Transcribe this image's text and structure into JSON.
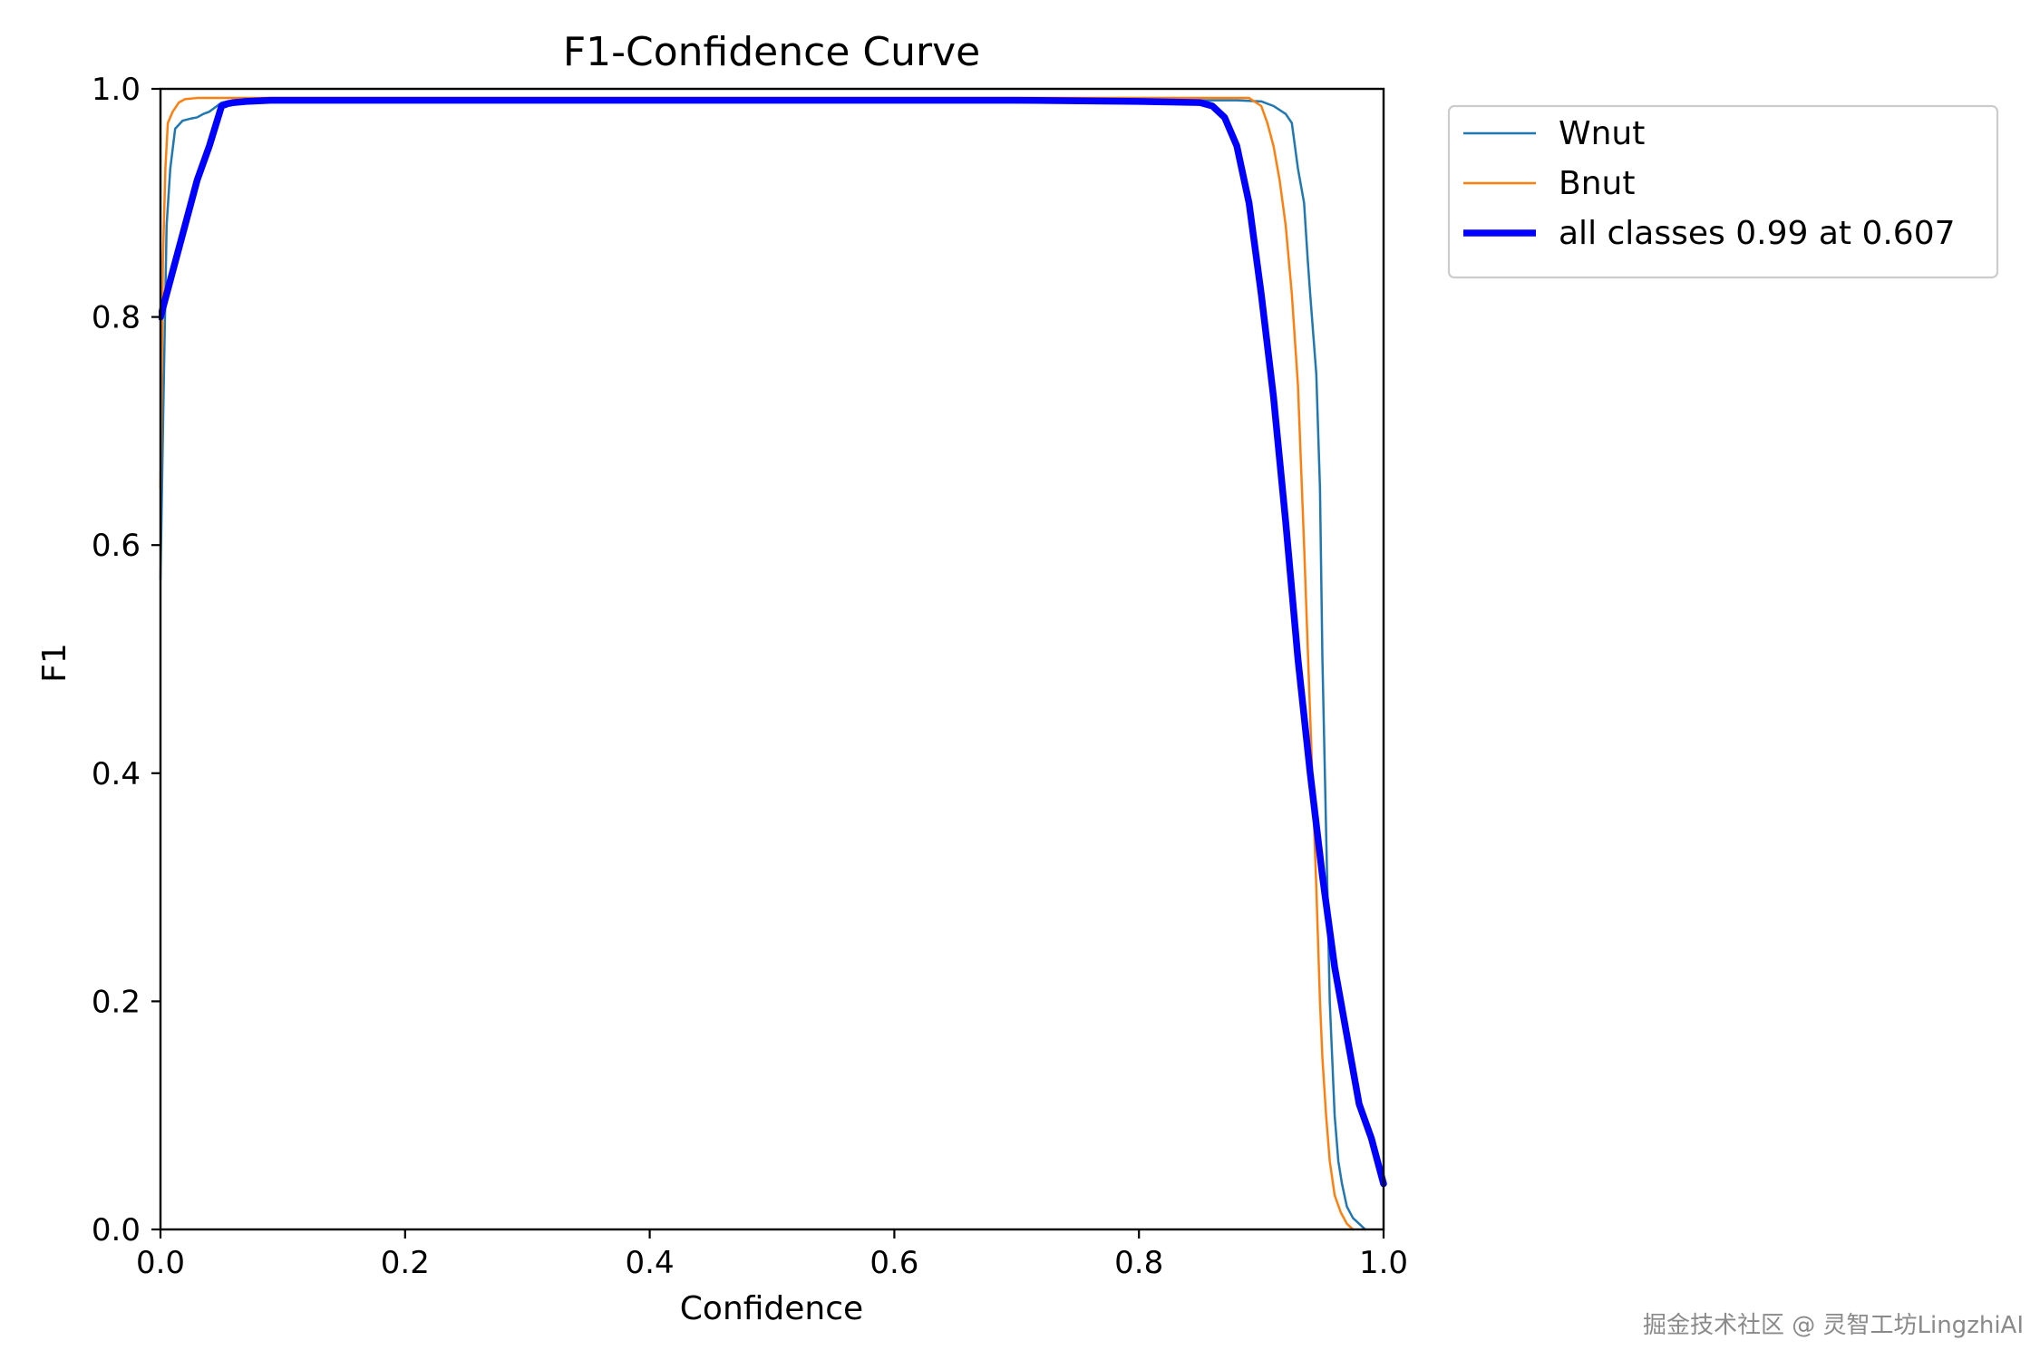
{
  "chart_data": {
    "type": "line",
    "title": "F1-Confidence Curve",
    "xlabel": "Confidence",
    "ylabel": "F1",
    "xlim": [
      0.0,
      1.0
    ],
    "ylim": [
      0.0,
      1.0
    ],
    "xticks": [
      "0.0",
      "0.2",
      "0.4",
      "0.6",
      "0.8",
      "1.0"
    ],
    "yticks": [
      "0.0",
      "0.2",
      "0.4",
      "0.6",
      "0.8",
      "1.0"
    ],
    "grid": false,
    "legend_position": "outside-top-right",
    "series": [
      {
        "name": "Wnut",
        "color": "#1f77b4",
        "x": [
          0.0,
          0.002,
          0.005,
          0.008,
          0.012,
          0.018,
          0.025,
          0.03,
          0.035,
          0.04,
          0.045,
          0.05,
          0.06,
          0.08,
          0.1,
          0.2,
          0.3,
          0.4,
          0.5,
          0.6,
          0.7,
          0.8,
          0.85,
          0.88,
          0.9,
          0.91,
          0.92,
          0.925,
          0.93,
          0.935,
          0.938,
          0.94,
          0.945,
          0.948,
          0.95,
          0.953,
          0.956,
          0.96,
          0.963,
          0.966,
          0.968,
          0.97,
          0.975,
          0.98,
          0.985
        ],
        "y": [
          0.57,
          0.7,
          0.88,
          0.93,
          0.965,
          0.972,
          0.974,
          0.975,
          0.978,
          0.98,
          0.984,
          0.988,
          0.99,
          0.99,
          0.99,
          0.99,
          0.99,
          0.99,
          0.99,
          0.99,
          0.99,
          0.99,
          0.99,
          0.99,
          0.989,
          0.985,
          0.978,
          0.97,
          0.93,
          0.9,
          0.85,
          0.82,
          0.75,
          0.65,
          0.5,
          0.35,
          0.2,
          0.1,
          0.06,
          0.04,
          0.03,
          0.02,
          0.01,
          0.005,
          0.0
        ]
      },
      {
        "name": "Bnut",
        "color": "#ff7f0e",
        "x": [
          0.0,
          0.002,
          0.004,
          0.006,
          0.01,
          0.015,
          0.02,
          0.03,
          0.05,
          0.1,
          0.2,
          0.3,
          0.4,
          0.5,
          0.6,
          0.7,
          0.8,
          0.85,
          0.88,
          0.89,
          0.9,
          0.905,
          0.91,
          0.915,
          0.92,
          0.925,
          0.93,
          0.935,
          0.94,
          0.945,
          0.948,
          0.95,
          0.953,
          0.956,
          0.96,
          0.965,
          0.97,
          0.975
        ],
        "y": [
          0.65,
          0.85,
          0.93,
          0.97,
          0.98,
          0.988,
          0.991,
          0.992,
          0.992,
          0.992,
          0.992,
          0.992,
          0.992,
          0.992,
          0.992,
          0.992,
          0.992,
          0.992,
          0.992,
          0.992,
          0.985,
          0.97,
          0.95,
          0.92,
          0.88,
          0.82,
          0.74,
          0.6,
          0.45,
          0.3,
          0.2,
          0.15,
          0.1,
          0.06,
          0.03,
          0.015,
          0.005,
          0.0
        ]
      },
      {
        "name": "all classes 0.99 at 0.607",
        "color": "#0000ff",
        "x": [
          0.0,
          0.01,
          0.02,
          0.03,
          0.04,
          0.05,
          0.055,
          0.06,
          0.07,
          0.09,
          0.1,
          0.2,
          0.3,
          0.4,
          0.5,
          0.6,
          0.607,
          0.7,
          0.8,
          0.85,
          0.86,
          0.87,
          0.88,
          0.89,
          0.9,
          0.91,
          0.92,
          0.93,
          0.94,
          0.95,
          0.96,
          0.97,
          0.98,
          0.99,
          1.0
        ],
        "y": [
          0.8,
          0.84,
          0.88,
          0.92,
          0.95,
          0.985,
          0.987,
          0.988,
          0.989,
          0.99,
          0.99,
          0.99,
          0.99,
          0.99,
          0.99,
          0.99,
          0.99,
          0.99,
          0.989,
          0.988,
          0.985,
          0.975,
          0.95,
          0.9,
          0.82,
          0.73,
          0.62,
          0.5,
          0.4,
          0.31,
          0.23,
          0.17,
          0.11,
          0.08,
          0.04
        ]
      }
    ]
  },
  "watermark": {
    "text": "掘金技术社区 @ 灵智工坊LingzhiAI"
  }
}
